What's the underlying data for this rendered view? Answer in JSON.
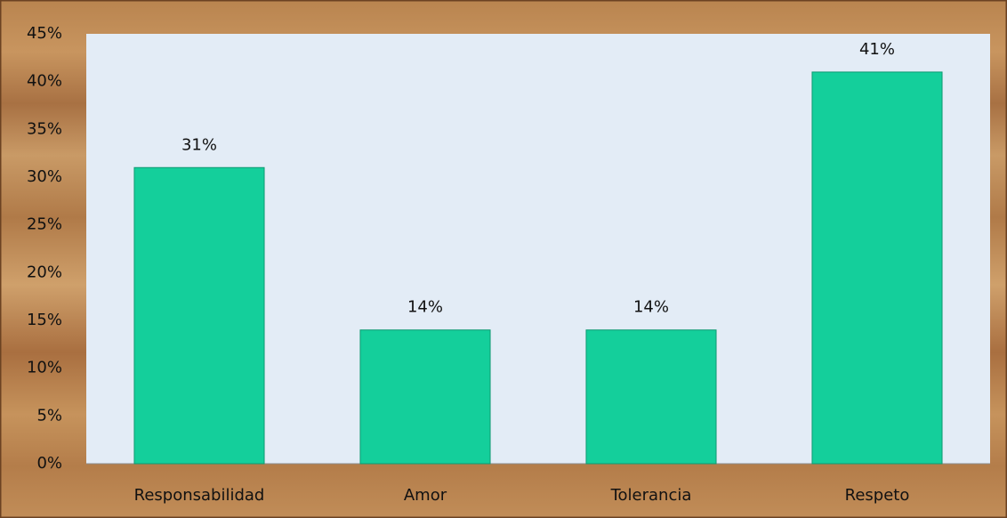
{
  "chart_data": {
    "type": "bar",
    "categories": [
      "Responsabilidad",
      "Amor",
      "Tolerancia",
      "Respeto"
    ],
    "values": [
      31,
      14,
      14,
      41
    ],
    "value_labels": [
      "31%",
      "14%",
      "14%",
      "41%"
    ],
    "color": "#14cf9b",
    "ylim": [
      0,
      45
    ],
    "yticks": [
      {
        "value": 0,
        "label": "0%"
      },
      {
        "value": 5,
        "label": "5%"
      },
      {
        "value": 10,
        "label": "10%"
      },
      {
        "value": 15,
        "label": "15%"
      },
      {
        "value": 20,
        "label": "20%"
      },
      {
        "value": 25,
        "label": "25%"
      },
      {
        "value": 30,
        "label": "30%"
      },
      {
        "value": 35,
        "label": "35%"
      },
      {
        "value": 40,
        "label": "40%"
      },
      {
        "value": 45,
        "label": "45%"
      }
    ],
    "grid": false
  }
}
